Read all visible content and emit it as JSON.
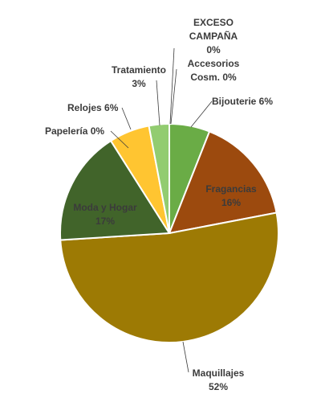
{
  "chart_data": {
    "type": "pie",
    "title": "",
    "slices": [
      {
        "label": [
          "Bijouterie 6%"
        ],
        "value": 6,
        "color": "#6aac46"
      },
      {
        "label": [
          "Fragancias",
          "16%"
        ],
        "value": 16,
        "color": "#9c4a0e"
      },
      {
        "label": [
          "Maquillajes",
          "52%"
        ],
        "value": 52,
        "color": "#9d7a04"
      },
      {
        "label": [
          "Moda y Hogar",
          "17%"
        ],
        "value": 17,
        "color": "#41642a"
      },
      {
        "label": [
          "Papelería 0%"
        ],
        "value": 0,
        "color": "#c8c8c8"
      },
      {
        "label": [
          "Relojes 6%"
        ],
        "value": 6,
        "color": "#ffc531"
      },
      {
        "label": [
          "Tratamiento",
          "3%"
        ],
        "value": 3,
        "color": "#92cc70"
      },
      {
        "label": [
          "EXCESO",
          "CAMPAÑA",
          "0%"
        ],
        "value": 0,
        "color": "#7f7f7f"
      },
      {
        "label": [
          "Accesorios",
          "Cosm. 0%"
        ],
        "value": 0,
        "color": "#5e8f3c"
      }
    ]
  }
}
